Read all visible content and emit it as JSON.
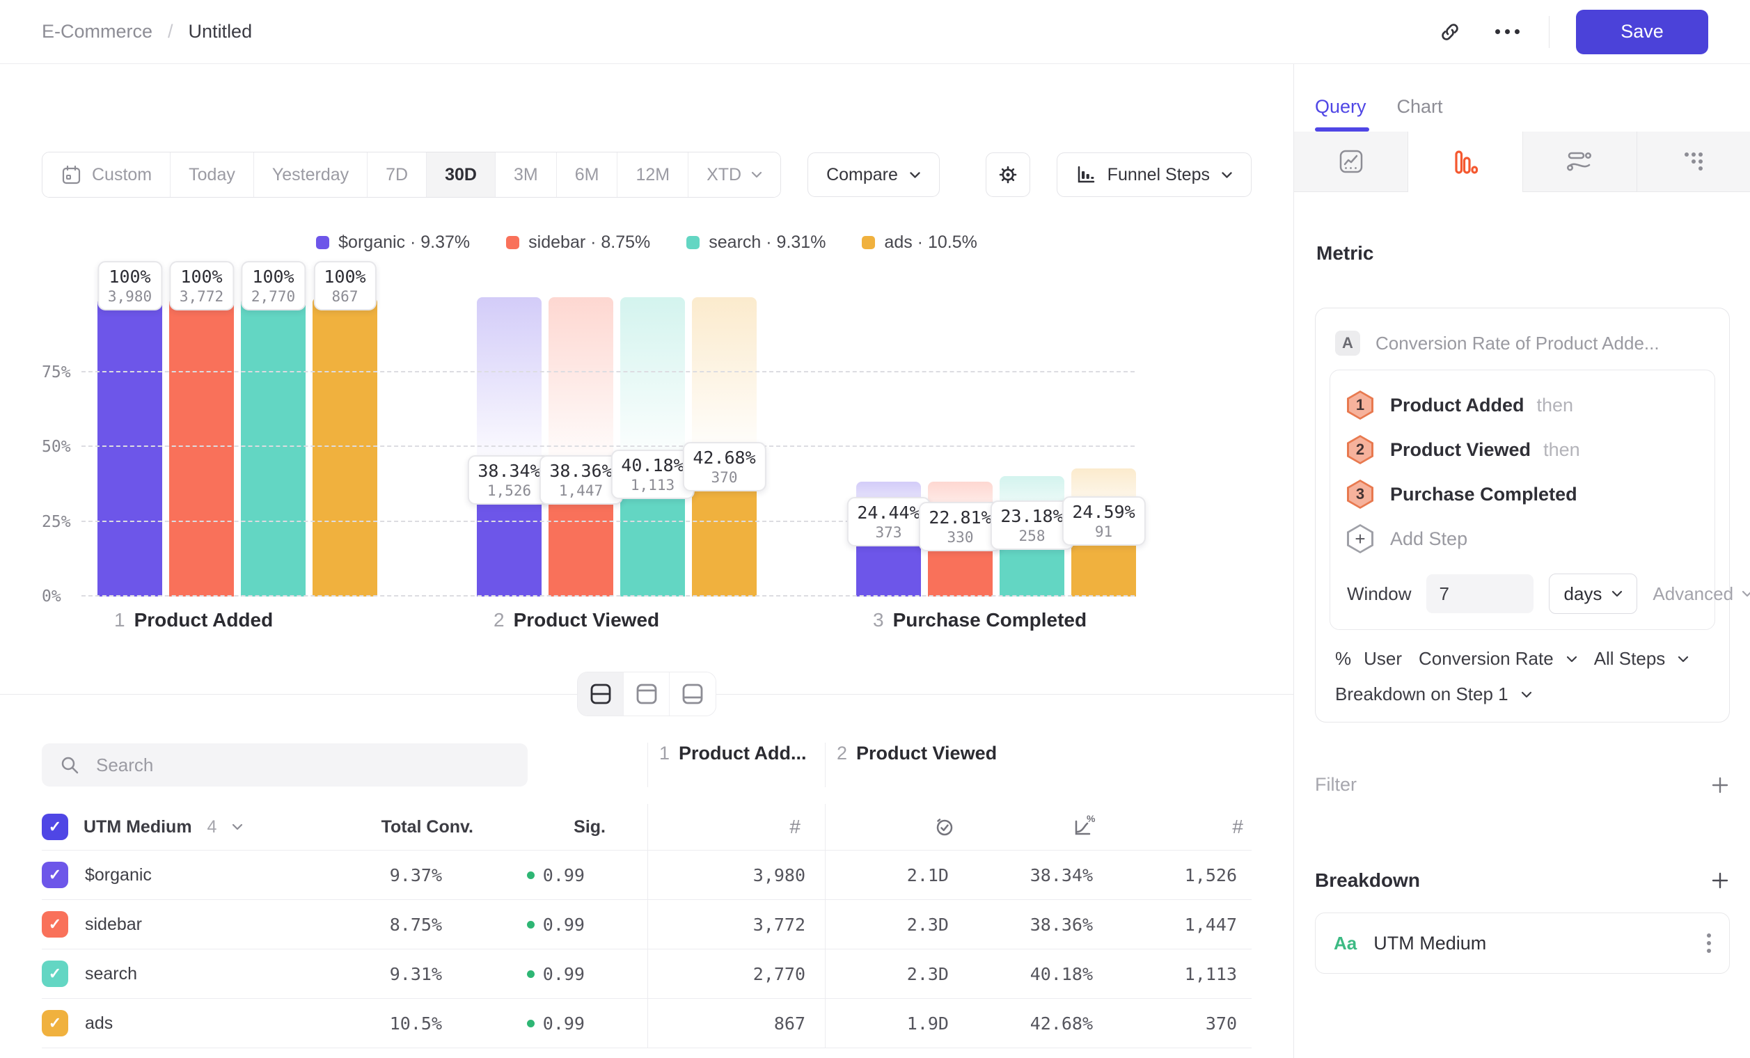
{
  "header": {
    "breadcrumb_parent": "E-Commerce",
    "breadcrumb_separator": "/",
    "breadcrumb_current": "Untitled",
    "save_label": "Save"
  },
  "toolbar": {
    "ranges": [
      "Custom",
      "Today",
      "Yesterday",
      "7D",
      "30D",
      "3M",
      "6M",
      "12M",
      "XTD"
    ],
    "selected_range": "30D",
    "compare_label": "Compare",
    "view_label": "Funnel Steps"
  },
  "legend": [
    {
      "label": "$organic · 9.37%",
      "color": "#6d56e9"
    },
    {
      "label": "sidebar · 8.75%",
      "color": "#f9715a"
    },
    {
      "label": "search · 9.31%",
      "color": "#63d6c3"
    },
    {
      "label": "ads · 10.5%",
      "color": "#f0b13e"
    }
  ],
  "chart_data": {
    "type": "bar",
    "subtype": "grouped-funnel",
    "title": "",
    "xlabel": "",
    "ylabel": "",
    "ylim": [
      0,
      100
    ],
    "grid": "dashed-horizontal",
    "legend_position": "top-center",
    "yticks": [
      {
        "pct": 0,
        "label": "0%"
      },
      {
        "pct": 25,
        "label": "25%"
      },
      {
        "pct": 50,
        "label": "50%"
      },
      {
        "pct": 75,
        "label": "75%"
      }
    ],
    "categories": [
      "Product Added",
      "Product Viewed",
      "Purchase Completed"
    ],
    "step_labels": [
      {
        "num": "1",
        "name": "Product Added"
      },
      {
        "num": "2",
        "name": "Product Viewed"
      },
      {
        "num": "3",
        "name": "Purchase Completed"
      }
    ],
    "series": [
      {
        "name": "$organic",
        "color": "#6d56e9",
        "ghost_tint": "rgba(109,86,233,0.30)",
        "points": [
          {
            "pct": 100,
            "pct_label": "100%",
            "count": "3,980"
          },
          {
            "pct": 38.34,
            "pct_label": "38.34%",
            "count": "1,526"
          },
          {
            "pct": 24.44,
            "pct_label": "24.44%",
            "count": "373"
          }
        ]
      },
      {
        "name": "sidebar",
        "color": "#f9715a",
        "ghost_tint": "rgba(249,113,90,0.28)",
        "points": [
          {
            "pct": 100,
            "pct_label": "100%",
            "count": "3,772"
          },
          {
            "pct": 38.36,
            "pct_label": "38.36%",
            "count": "1,447"
          },
          {
            "pct": 22.81,
            "pct_label": "22.81%",
            "count": "330"
          }
        ]
      },
      {
        "name": "search",
        "color": "#63d6c3",
        "ghost_tint": "rgba(99,214,195,0.28)",
        "points": [
          {
            "pct": 100,
            "pct_label": "100%",
            "count": "2,770"
          },
          {
            "pct": 40.18,
            "pct_label": "40.18%",
            "count": "1,113"
          },
          {
            "pct": 23.18,
            "pct_label": "23.18%",
            "count": "258"
          }
        ]
      },
      {
        "name": "ads",
        "color": "#f0b13e",
        "ghost_tint": "rgba(240,177,62,0.26)",
        "points": [
          {
            "pct": 100,
            "pct_label": "100%",
            "count": "867"
          },
          {
            "pct": 42.68,
            "pct_label": "42.68%",
            "count": "370"
          },
          {
            "pct": 24.59,
            "pct_label": "24.59%",
            "count": "91"
          }
        ]
      }
    ]
  },
  "table": {
    "search_placeholder": "Search",
    "group_header": {
      "name_label": "UTM Medium",
      "count": "4"
    },
    "columns": {
      "total_conv": "Total Conv.",
      "sig": "Sig.",
      "step1": {
        "num": "1",
        "label": "Product Add..."
      },
      "step2": {
        "num": "2",
        "label": "Product Viewed"
      }
    },
    "sig_dot_color": "#2eb674",
    "rows": [
      {
        "name": "$organic",
        "color": "#6d56e9",
        "total_conv": "9.37%",
        "sig": "0.99",
        "step1_count": "3,980",
        "pv_time": "2.1D",
        "pv_rate": "38.34%",
        "pv_count": "1,526"
      },
      {
        "name": "sidebar",
        "color": "#f9715a",
        "total_conv": "8.75%",
        "sig": "0.99",
        "step1_count": "3,772",
        "pv_time": "2.3D",
        "pv_rate": "38.36%",
        "pv_count": "1,447"
      },
      {
        "name": "search",
        "color": "#63d6c3",
        "total_conv": "9.31%",
        "sig": "0.99",
        "step1_count": "2,770",
        "pv_time": "2.3D",
        "pv_rate": "40.18%",
        "pv_count": "1,113"
      },
      {
        "name": "ads",
        "color": "#f0b13e",
        "total_conv": "10.5%",
        "sig": "0.99",
        "step1_count": "867",
        "pv_time": "1.9D",
        "pv_rate": "42.68%",
        "pv_count": "370"
      }
    ]
  },
  "panel": {
    "tabs": {
      "query": "Query",
      "chart": "Chart"
    },
    "accent_color": "#4f46e5",
    "funnel_icon_color": "#f4582f",
    "metric": {
      "heading": "Metric",
      "series_badge": "A",
      "series_title": "Conversion Rate of Product Adde...",
      "steps": [
        {
          "num": "1",
          "name": "Product Added",
          "suffix": "then"
        },
        {
          "num": "2",
          "name": "Product Viewed",
          "suffix": "then"
        },
        {
          "num": "3",
          "name": "Purchase Completed",
          "suffix": ""
        }
      ],
      "add_step_label": "Add Step",
      "window_label": "Window",
      "window_value": "7",
      "window_unit": "days",
      "advanced_label": "Advanced",
      "measured": {
        "pct": "%",
        "user": "User",
        "conversion": "Conversion Rate",
        "scope": "All Steps"
      },
      "breakdown_on": "Breakdown on Step 1"
    },
    "filter_label": "Filter",
    "breakdown_heading": "Breakdown",
    "breakdown_item": {
      "type_label": "Aa",
      "name": "UTM Medium"
    }
  }
}
